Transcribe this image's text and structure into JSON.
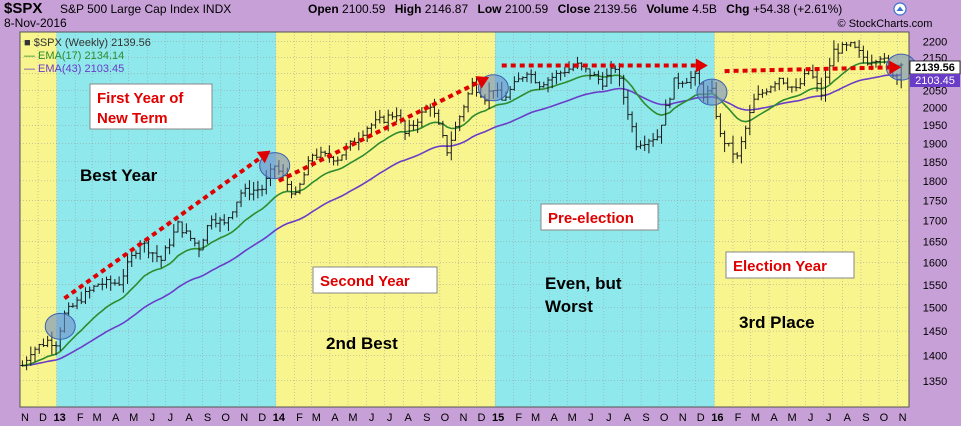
{
  "header": {
    "symbol": "$SPX",
    "name": "S&P 500 Large Cap Index",
    "exchange": "INDX",
    "date": "8-Nov-2016",
    "open_label": "Open",
    "open": "2100.59",
    "high_label": "High",
    "high": "2146.87",
    "low_label": "Low",
    "low": "2100.59",
    "close_label": "Close",
    "close": "2139.56",
    "volume_label": "Volume",
    "volume": "4.5B",
    "chg_label": "Chg",
    "chg": "+54.38 (+2.61%)",
    "watermark": "© StockCharts.com"
  },
  "legend": [
    {
      "text": "■ $SPX (Weekly) 2139.56",
      "color": "#333333"
    },
    {
      "text": "— EMA(17) 2134.14",
      "color": "#2e8b2e"
    },
    {
      "text": "— EMA(43) 2103.45",
      "color": "#6a3cc8"
    }
  ],
  "price_tags": {
    "close": "2139.56",
    "ema43": "2103.45"
  },
  "annotations": {
    "first_year": [
      "First Year of",
      "New Term"
    ],
    "best_year": "Best Year",
    "second_year": "Second Year",
    "second_best": "2nd Best",
    "pre_election": "Pre-election",
    "even_worst": [
      "Even, but",
      "Worst"
    ],
    "election_year": "Election Year",
    "third_place": "3rd Place"
  },
  "colors": {
    "cyan_band": "#8fe8ec",
    "yellow_band": "#f8f58e",
    "frame": "#c8a0d8",
    "bars": "#1a1a1a",
    "ema17": "#2e8b2e",
    "ema43": "#6a3cc8",
    "arrow": "#e00000"
  },
  "chart_data": {
    "type": "ohlc",
    "title": "$SPX S&P 500 Large Cap Index INDX",
    "interval": "weekly",
    "xlabel": "",
    "ylabel": "",
    "ylim": [
      1300,
      2230
    ],
    "y_scale": "log",
    "y_ticks": [
      1350,
      1400,
      1450,
      1500,
      1550,
      1600,
      1650,
      1700,
      1750,
      1800,
      1850,
      1900,
      1950,
      2000,
      2050,
      2100,
      2150,
      2200
    ],
    "x_tick_labels": [
      "N",
      "D",
      "13",
      "F",
      "M",
      "A",
      "M",
      "J",
      "J",
      "A",
      "S",
      "O",
      "N",
      "D",
      "14",
      "F",
      "M",
      "A",
      "M",
      "J",
      "J",
      "A",
      "S",
      "O",
      "N",
      "D",
      "15",
      "F",
      "M",
      "A",
      "M",
      "J",
      "J",
      "A",
      "S",
      "O",
      "N",
      "D",
      "16",
      "F",
      "M",
      "A",
      "M",
      "J",
      "J",
      "A",
      "S",
      "O",
      "N"
    ],
    "x_tick_months": [
      "2012-11",
      "2012-12",
      "2013-01",
      "2013-02",
      "2013-03",
      "2013-04",
      "2013-05",
      "2013-06",
      "2013-07",
      "2013-08",
      "2013-09",
      "2013-10",
      "2013-11",
      "2013-12",
      "2014-01",
      "2014-02",
      "2014-03",
      "2014-04",
      "2014-05",
      "2014-06",
      "2014-07",
      "2014-08",
      "2014-09",
      "2014-10",
      "2014-11",
      "2014-12",
      "2015-01",
      "2015-02",
      "2015-03",
      "2015-04",
      "2015-05",
      "2015-06",
      "2015-07",
      "2015-08",
      "2015-09",
      "2015-10",
      "2015-11",
      "2015-12",
      "2016-01",
      "2016-02",
      "2016-03",
      "2016-04",
      "2016-05",
      "2016-06",
      "2016-07",
      "2016-08",
      "2016-09",
      "2016-10",
      "2016-11"
    ],
    "x_range": [
      "2012-11-01",
      "2016-11-20"
    ],
    "grid": true,
    "bands": [
      {
        "start": "2012-11-01",
        "end": "2013-01-01",
        "color": "yellow"
      },
      {
        "start": "2013-01-01",
        "end": "2014-01-01",
        "color": "cyan"
      },
      {
        "start": "2014-01-01",
        "end": "2015-01-01",
        "color": "yellow"
      },
      {
        "start": "2015-01-01",
        "end": "2016-01-01",
        "color": "cyan"
      },
      {
        "start": "2016-01-01",
        "end": "2016-11-20",
        "color": "yellow"
      }
    ],
    "series": [
      {
        "name": "$SPX (Weekly)",
        "type": "ohlc",
        "anchors": [
          [
            "2012-11-05",
            1380
          ],
          [
            "2012-11-19",
            1409
          ],
          [
            "2012-12-17",
            1430
          ],
          [
            "2012-12-31",
            1426
          ],
          [
            "2013-01-14",
            1485
          ],
          [
            "2013-02-11",
            1520
          ],
          [
            "2013-03-11",
            1552
          ],
          [
            "2013-04-15",
            1555
          ],
          [
            "2013-05-20",
            1650
          ],
          [
            "2013-06-24",
            1606
          ],
          [
            "2013-07-22",
            1690
          ],
          [
            "2013-08-26",
            1635
          ],
          [
            "2013-09-16",
            1710
          ],
          [
            "2013-10-07",
            1690
          ],
          [
            "2013-11-04",
            1770
          ],
          [
            "2013-12-09",
            1780
          ],
          [
            "2013-12-30",
            1840
          ],
          [
            "2014-02-03",
            1760
          ],
          [
            "2014-03-03",
            1870
          ],
          [
            "2014-04-14",
            1860
          ],
          [
            "2014-06-02",
            1945
          ],
          [
            "2014-07-21",
            1985
          ],
          [
            "2014-08-04",
            1925
          ],
          [
            "2014-09-15",
            2010
          ],
          [
            "2014-10-13",
            1880
          ],
          [
            "2014-11-24",
            2070
          ],
          [
            "2014-12-15",
            2030
          ],
          [
            "2014-12-29",
            2058
          ],
          [
            "2015-01-12",
            2020
          ],
          [
            "2015-02-23",
            2110
          ],
          [
            "2015-03-16",
            2070
          ],
          [
            "2015-04-27",
            2110
          ],
          [
            "2015-05-18",
            2125
          ],
          [
            "2015-06-29",
            2075
          ],
          [
            "2015-07-20",
            2120
          ],
          [
            "2015-08-24",
            1900
          ],
          [
            "2015-09-28",
            1920
          ],
          [
            "2015-10-26",
            2075
          ],
          [
            "2015-11-30",
            2090
          ],
          [
            "2015-12-14",
            2040
          ],
          [
            "2015-12-28",
            2045
          ],
          [
            "2016-01-11",
            1920
          ],
          [
            "2016-02-08",
            1860
          ],
          [
            "2016-03-07",
            2020
          ],
          [
            "2016-04-18",
            2090
          ],
          [
            "2016-05-16",
            2050
          ],
          [
            "2016-06-06",
            2110
          ],
          [
            "2016-06-27",
            2040
          ],
          [
            "2016-07-18",
            2170
          ],
          [
            "2016-08-15",
            2185
          ],
          [
            "2016-09-12",
            2140
          ],
          [
            "2016-10-03",
            2155
          ],
          [
            "2016-10-31",
            2085
          ],
          [
            "2016-11-07",
            2139.56
          ]
        ],
        "swing_pct": 0.012,
        "range_pct": 0.022
      },
      {
        "name": "EMA(17)",
        "type": "ema",
        "period": 17,
        "source": "$SPX (Weekly)"
      },
      {
        "name": "EMA(43)",
        "type": "ema",
        "period": 43,
        "source": "$SPX (Weekly)"
      }
    ],
    "highlight_circles": [
      {
        "date": "2013-01-07",
        "value": 1460
      },
      {
        "date": "2013-12-30",
        "value": 1840
      },
      {
        "date": "2014-12-29",
        "value": 2058
      },
      {
        "date": "2015-12-28",
        "value": 2045
      },
      {
        "date": "2016-11-07",
        "value": 2120
      }
    ],
    "trend_arrows": [
      {
        "from": [
          "2013-01-14",
          1520
        ],
        "to": [
          "2013-12-23",
          1880
        ]
      },
      {
        "from": [
          "2014-01-06",
          1800
        ],
        "to": [
          "2014-12-22",
          2090
        ]
      },
      {
        "from": [
          "2015-01-12",
          2125
        ],
        "to": [
          "2015-12-21",
          2125
        ]
      },
      {
        "from": [
          "2016-01-18",
          2108
        ],
        "to": [
          "2016-11-07",
          2120
        ]
      }
    ]
  }
}
